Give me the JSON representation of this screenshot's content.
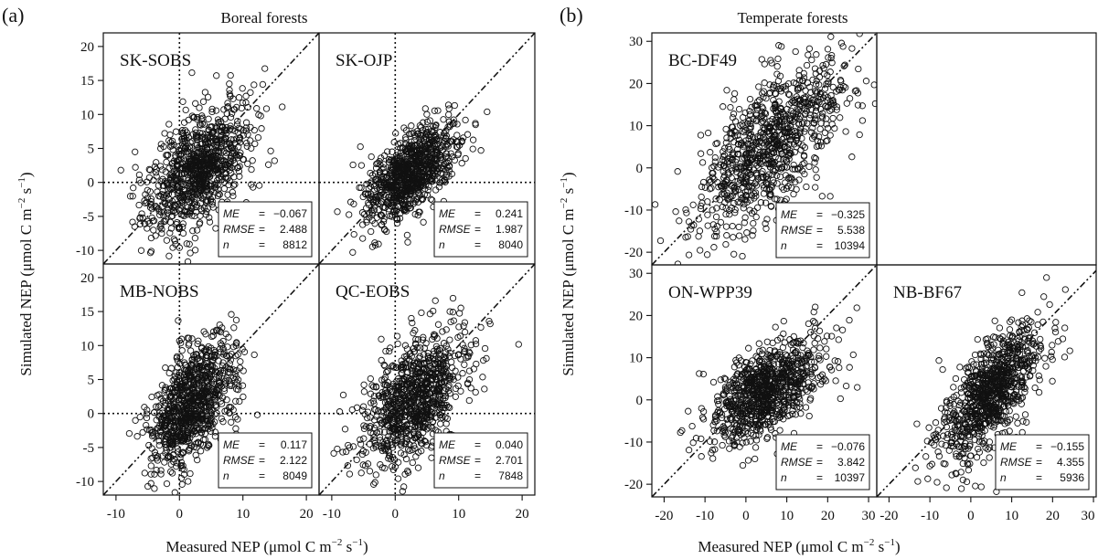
{
  "figure": {
    "panel_a_label": "(a)",
    "panel_b_label": "(b)",
    "group_a_title": "Boreal forests",
    "group_b_title": "Temperate forests",
    "ylabel_main": "Simulated NEP (μmol C m",
    "ylabel_sup1": "−2",
    "ylabel_mid": " s",
    "ylabel_sup2": "−1",
    "ylabel_end": ")",
    "xlabel_main": "Measured NEP (μmol C m",
    "xlabel_sup1": "−2",
    "xlabel_mid": " s",
    "xlabel_sup2": "−1",
    "xlabel_end": ")",
    "stat_labels": {
      "me": "ME",
      "rmse": "RMSE",
      "n": "n",
      "eq": "="
    }
  },
  "chart_data": [
    {
      "type": "scatter",
      "group": "Boreal forests",
      "site": "SK-SOBS",
      "xlim": [
        -12,
        22
      ],
      "ylim": [
        -12,
        22
      ],
      "xticks": [
        -10,
        0,
        10,
        20
      ],
      "yticks": [
        -10,
        -5,
        0,
        5,
        10,
        15,
        20
      ],
      "reference_lines": [
        "1:1 dash-dot",
        "x=0 dotted",
        "y=0 dotted"
      ],
      "stats": {
        "ME": "−0.067",
        "RMSE": "2.488",
        "n": "8812"
      },
      "cloud": {
        "center": [
          3,
          2
        ],
        "spread": [
          4,
          4
        ],
        "slope": 0.6
      }
    },
    {
      "type": "scatter",
      "group": "Boreal forests",
      "site": "SK-OJP",
      "xlim": [
        -12,
        22
      ],
      "ylim": [
        -12,
        22
      ],
      "xticks": [
        -10,
        0,
        10,
        20
      ],
      "yticks": [
        -10,
        -5,
        0,
        5,
        10,
        15,
        20
      ],
      "reference_lines": [
        "1:1 dash-dot",
        "x=0 dotted",
        "y=0 dotted"
      ],
      "stats": {
        "ME": "0.241",
        "RMSE": "1.987",
        "n": "8040"
      },
      "cloud": {
        "center": [
          2.5,
          1.5
        ],
        "spread": [
          3.5,
          3
        ],
        "slope": 0.6
      }
    },
    {
      "type": "scatter",
      "group": "Boreal forests",
      "site": "MB-NOBS",
      "xlim": [
        -12,
        22
      ],
      "ylim": [
        -12,
        22
      ],
      "xticks": [
        -10,
        0,
        10,
        20
      ],
      "yticks": [
        -10,
        -5,
        0,
        5,
        10,
        15,
        20
      ],
      "reference_lines": [
        "1:1 dash-dot",
        "x=0 dotted",
        "y=0 dotted"
      ],
      "stats": {
        "ME": "0.117",
        "RMSE": "2.122",
        "n": "8049"
      },
      "cloud": {
        "center": [
          2,
          1.5
        ],
        "spread": [
          3.5,
          4
        ],
        "slope": 0.7
      }
    },
    {
      "type": "scatter",
      "group": "Boreal forests",
      "site": "QC-EOBS",
      "xlim": [
        -12,
        22
      ],
      "ylim": [
        -12,
        22
      ],
      "xticks": [
        -10,
        0,
        10,
        20
      ],
      "yticks": [
        -10,
        -5,
        0,
        5,
        10,
        15,
        20
      ],
      "reference_lines": [
        "1:1 dash-dot",
        "x=0 dotted",
        "y=0 dotted"
      ],
      "stats": {
        "ME": "0.040",
        "RMSE": "2.701",
        "n": "7848"
      },
      "cloud": {
        "center": [
          3,
          2
        ],
        "spread": [
          4,
          4
        ],
        "slope": 0.6
      }
    },
    {
      "type": "scatter",
      "group": "Temperate forests",
      "site": "BC-DF49",
      "xlim": [
        -23,
        32
      ],
      "ylim": [
        -23,
        32
      ],
      "xticks": [
        -20,
        -10,
        0,
        10,
        20,
        30
      ],
      "yticks": [
        -20,
        -10,
        0,
        10,
        20,
        30
      ],
      "reference_lines": [
        "1:1 dash-dot"
      ],
      "stats": {
        "ME": "−0.325",
        "RMSE": "5.538",
        "n": "10394"
      },
      "cloud": {
        "center": [
          6,
          5
        ],
        "spread": [
          9,
          8
        ],
        "slope": 0.7
      }
    },
    {
      "type": "scatter",
      "group": "Temperate forests",
      "site": "ON-WPP39",
      "xlim": [
        -23,
        32
      ],
      "ylim": [
        -23,
        32
      ],
      "xticks": [
        -20,
        -10,
        0,
        10,
        20,
        30
      ],
      "yticks": [
        -20,
        -10,
        0,
        10,
        20,
        30
      ],
      "reference_lines": [
        "1:1 dash-dot"
      ],
      "stats": {
        "ME": "−0.076",
        "RMSE": "3.842",
        "n": "10397"
      },
      "cloud": {
        "center": [
          5,
          2
        ],
        "spread": [
          7,
          5
        ],
        "slope": 0.5
      }
    },
    {
      "type": "scatter",
      "group": "Temperate forests",
      "site": "NB-BF67",
      "xlim": [
        -23,
        32
      ],
      "ylim": [
        -23,
        32
      ],
      "xticks": [
        -20,
        -10,
        0,
        10,
        20,
        30
      ],
      "yticks": [
        -20,
        -10,
        0,
        10,
        20,
        30
      ],
      "reference_lines": [
        "1:1 dash-dot"
      ],
      "stats": {
        "ME": "−0.155",
        "RMSE": "4.355",
        "n": "5936"
      },
      "cloud": {
        "center": [
          5,
          2
        ],
        "spread": [
          6,
          6
        ],
        "slope": 0.9
      }
    }
  ]
}
